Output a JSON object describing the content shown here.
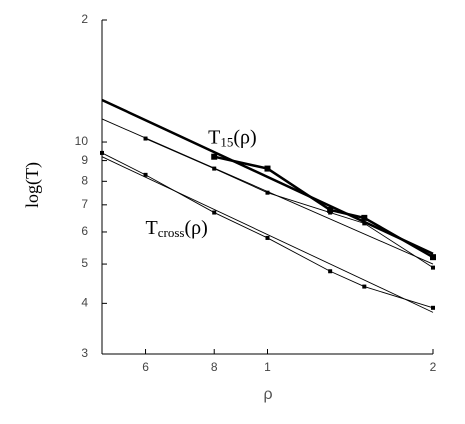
{
  "chart_data": {
    "type": "line",
    "xlabel": "ρ",
    "ylabel": "log(T)",
    "xscale": "log",
    "yscale": "log",
    "xlim": [
      0.5,
      2
    ],
    "xticks": [
      {
        "value": 0.6,
        "label": "6"
      },
      {
        "value": 0.8,
        "label": "8"
      },
      1,
      2
    ],
    "ylim": [
      3,
      20
    ],
    "yticks": [
      {
        "value": 20,
        "label": "2"
      },
      10,
      9,
      8,
      7,
      6,
      5,
      4,
      3
    ],
    "annotations": [
      {
        "base": "T",
        "sub": "15",
        "tail": "(ρ)",
        "x": 0.78,
        "y": 10.2
      },
      {
        "base": "T",
        "sub": "cross",
        "tail": "(ρ)",
        "x": 0.6,
        "y": 6.1
      }
    ],
    "series": [
      {
        "color": "#000000",
        "width": 2.5,
        "markers": false,
        "x": [
          0.5,
          2
        ],
        "values": [
          12.7,
          5.3
        ]
      },
      {
        "color": "#000000",
        "width": 2.5,
        "markers": true,
        "x": [
          0.8,
          1,
          1.3,
          1.5,
          2
        ],
        "values": [
          9.2,
          8.6,
          6.8,
          6.5,
          5.2
        ]
      },
      {
        "color": "#000000",
        "width": 0.9,
        "markers": false,
        "x": [
          0.5,
          2
        ],
        "values": [
          11.4,
          5.0
        ]
      },
      {
        "color": "#000000",
        "width": 0.9,
        "markers": true,
        "x": [
          0.6,
          0.8,
          1,
          1.3,
          1.5,
          2
        ],
        "values": [
          10.2,
          8.6,
          7.5,
          6.7,
          6.3,
          4.9
        ]
      },
      {
        "color": "#000000",
        "width": 0.9,
        "markers": true,
        "x": [
          0.5,
          0.6,
          0.8,
          1,
          1.3,
          1.5,
          2
        ],
        "values": [
          9.4,
          8.3,
          6.7,
          5.8,
          4.8,
          4.4,
          3.9
        ]
      },
      {
        "color": "#000000",
        "width": 0.9,
        "markers": false,
        "x": [
          0.5,
          2
        ],
        "values": [
          9.2,
          3.8
        ]
      }
    ]
  }
}
